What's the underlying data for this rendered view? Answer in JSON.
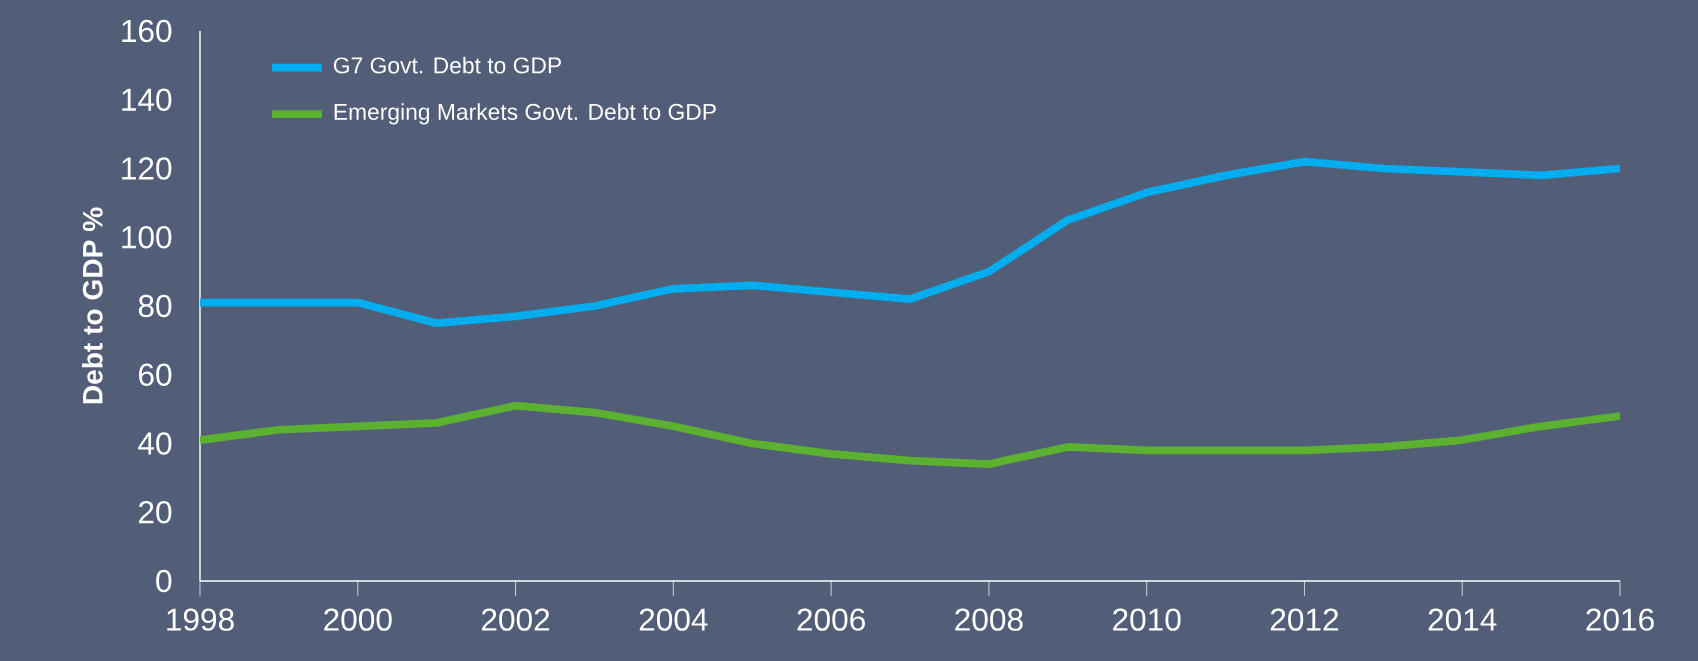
{
  "chart_data": {
    "type": "line",
    "ylabel": "Debt to GDP %",
    "x": [
      1998,
      1999,
      2000,
      2001,
      2002,
      2003,
      2004,
      2005,
      2006,
      2007,
      2008,
      2009,
      2010,
      2011,
      2012,
      2013,
      2014,
      2015,
      2016
    ],
    "series": [
      {
        "name": "G7 Govt. Debt to GDP",
        "color": "#00aeef",
        "values": [
          81,
          81,
          81,
          75,
          77,
          80,
          85,
          86,
          84,
          82,
          90,
          105,
          113,
          118,
          122,
          120,
          119,
          118,
          120
        ]
      },
      {
        "name": "Emerging Markets Govt. Debt to GDP",
        "color": "#5db130",
        "values": [
          41,
          44,
          45,
          46,
          51,
          49,
          45,
          40,
          37,
          35,
          34,
          39,
          38,
          38,
          38,
          39,
          41,
          45,
          48
        ]
      }
    ],
    "xlim": [
      1998,
      2016
    ],
    "xticks": [
      1998,
      2000,
      2002,
      2004,
      2006,
      2008,
      2010,
      2012,
      2014,
      2016
    ],
    "ylim": [
      0,
      160
    ],
    "yticks": [
      0,
      20,
      40,
      60,
      80,
      100,
      120,
      140,
      160
    ],
    "grid": false,
    "legend": "top left",
    "marker": "none",
    "line_style": "solid"
  }
}
